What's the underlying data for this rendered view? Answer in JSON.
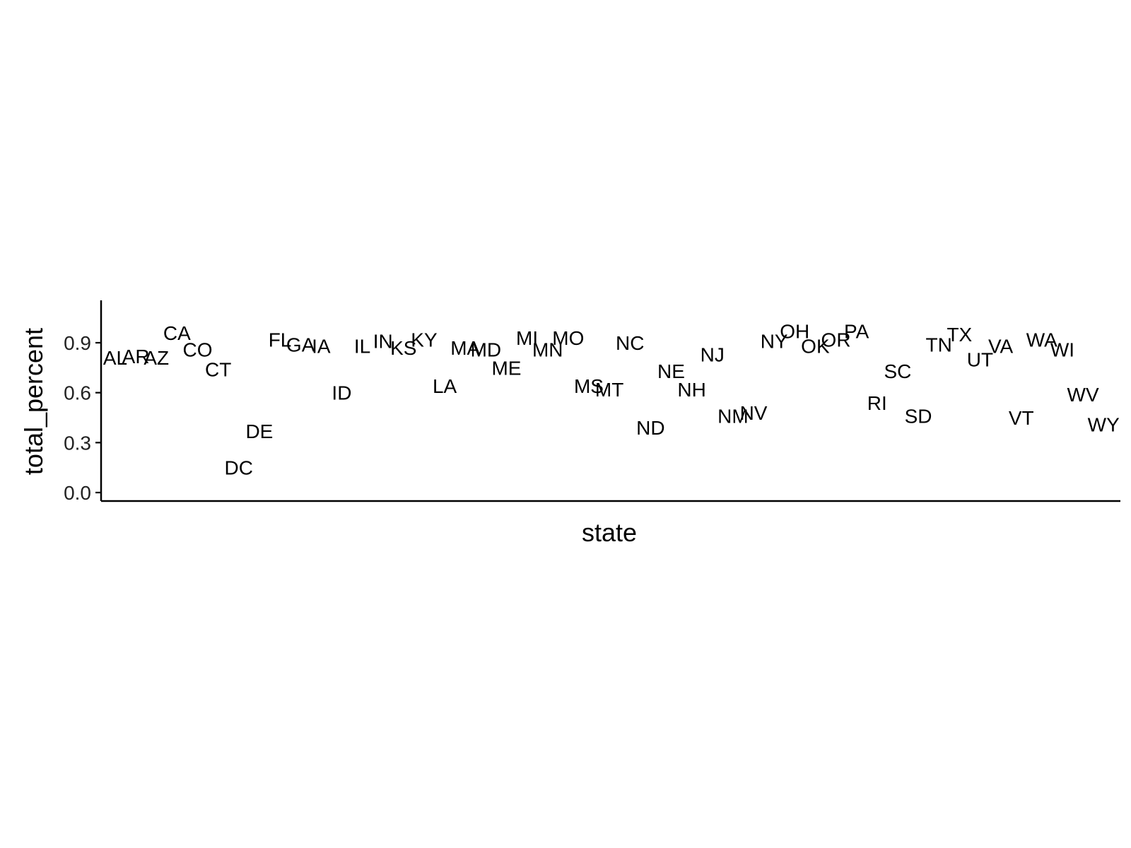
{
  "chart_data": {
    "type": "scatter",
    "title": "",
    "xlabel": "state",
    "ylabel": "total_percent",
    "x_scale": "categorical",
    "ylim": [
      -0.05,
      1.15
    ],
    "y_ticks": [
      "0.0",
      "0.3",
      "0.6",
      "0.9"
    ],
    "y_tick_values": [
      0.0,
      0.3,
      0.6,
      0.9
    ],
    "x_ticks_shown": false,
    "grid": false,
    "legend": "none",
    "marker": "text-label",
    "points": [
      {
        "state": "AL",
        "total_percent": 0.81
      },
      {
        "state": "AR",
        "total_percent": 0.82
      },
      {
        "state": "AZ",
        "total_percent": 0.81
      },
      {
        "state": "CA",
        "total_percent": 0.96
      },
      {
        "state": "CO",
        "total_percent": 0.86
      },
      {
        "state": "CT",
        "total_percent": 0.74
      },
      {
        "state": "DC",
        "total_percent": 0.15
      },
      {
        "state": "DE",
        "total_percent": 0.37
      },
      {
        "state": "FL",
        "total_percent": 0.92
      },
      {
        "state": "GA",
        "total_percent": 0.89
      },
      {
        "state": "IA",
        "total_percent": 0.88
      },
      {
        "state": "ID",
        "total_percent": 0.6
      },
      {
        "state": "IL",
        "total_percent": 0.88
      },
      {
        "state": "IN",
        "total_percent": 0.91
      },
      {
        "state": "KS",
        "total_percent": 0.87
      },
      {
        "state": "KY",
        "total_percent": 0.92
      },
      {
        "state": "LA",
        "total_percent": 0.64
      },
      {
        "state": "MA",
        "total_percent": 0.87
      },
      {
        "state": "MD",
        "total_percent": 0.86
      },
      {
        "state": "ME",
        "total_percent": 0.75
      },
      {
        "state": "MI",
        "total_percent": 0.93
      },
      {
        "state": "MN",
        "total_percent": 0.86
      },
      {
        "state": "MO",
        "total_percent": 0.93
      },
      {
        "state": "MS",
        "total_percent": 0.64
      },
      {
        "state": "MT",
        "total_percent": 0.62
      },
      {
        "state": "NC",
        "total_percent": 0.9
      },
      {
        "state": "ND",
        "total_percent": 0.39
      },
      {
        "state": "NE",
        "total_percent": 0.73
      },
      {
        "state": "NH",
        "total_percent": 0.62
      },
      {
        "state": "NJ",
        "total_percent": 0.83
      },
      {
        "state": "NM",
        "total_percent": 0.46
      },
      {
        "state": "NV",
        "total_percent": 0.48
      },
      {
        "state": "NY",
        "total_percent": 0.91
      },
      {
        "state": "OH",
        "total_percent": 0.97
      },
      {
        "state": "OK",
        "total_percent": 0.88
      },
      {
        "state": "OR",
        "total_percent": 0.92
      },
      {
        "state": "PA",
        "total_percent": 0.97
      },
      {
        "state": "RI",
        "total_percent": 0.54
      },
      {
        "state": "SC",
        "total_percent": 0.73
      },
      {
        "state": "SD",
        "total_percent": 0.46
      },
      {
        "state": "TN",
        "total_percent": 0.89
      },
      {
        "state": "TX",
        "total_percent": 0.95
      },
      {
        "state": "UT",
        "total_percent": 0.8
      },
      {
        "state": "VA",
        "total_percent": 0.88
      },
      {
        "state": "VT",
        "total_percent": 0.45
      },
      {
        "state": "WA",
        "total_percent": 0.92
      },
      {
        "state": "WI",
        "total_percent": 0.86
      },
      {
        "state": "WV",
        "total_percent": 0.59
      },
      {
        "state": "WY",
        "total_percent": 0.41
      }
    ]
  }
}
